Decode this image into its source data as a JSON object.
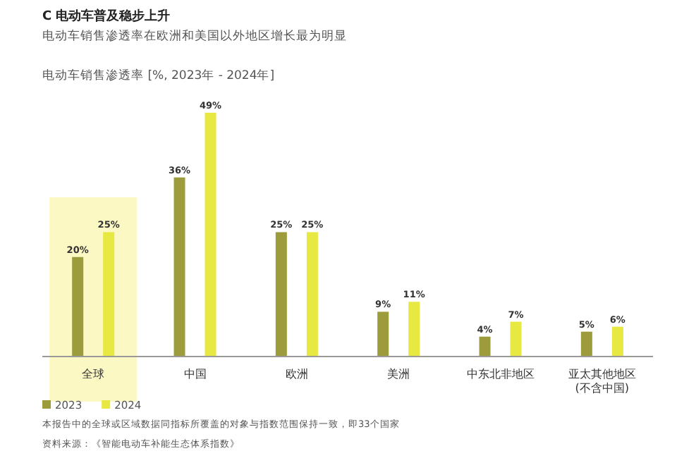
{
  "chart_data": {
    "type": "bar",
    "title": "C 电动车普及稳步上升",
    "subtitle": "电动车销售渗透率在欧洲和美国以外地区增长最为明显",
    "ylabel": "电动车销售渗透率 [%, 2023年 - 2024年]",
    "categories": [
      "全球",
      "中国",
      "欧洲",
      "美洲",
      "中东北非地区",
      "亚太其他地区\n(不含中国)"
    ],
    "series": [
      {
        "name": "2023",
        "color": "#9c9c3c",
        "values": [
          20,
          36,
          25,
          9,
          4,
          5
        ],
        "value_labels": [
          "20%",
          "36%",
          "25%",
          "9%",
          "4%",
          "5%"
        ]
      },
      {
        "name": "2024",
        "color": "#e8e842",
        "values": [
          25,
          49,
          25,
          11,
          7,
          6
        ],
        "value_labels": [
          "25%",
          "49%",
          "25%",
          "11%",
          "7%",
          "6%"
        ]
      }
    ],
    "bands": [
      {
        "axis": "x",
        "from": "全球",
        "to": "全球",
        "color": "#fbf8c4"
      }
    ],
    "legend": "bottom left",
    "annotations": [
      "本报告中的全球或区域数据同指标所覆盖的对象与指数范围保持一致，即33个国家",
      "资料来源：《智能电动车补能生态体系指数》"
    ]
  }
}
